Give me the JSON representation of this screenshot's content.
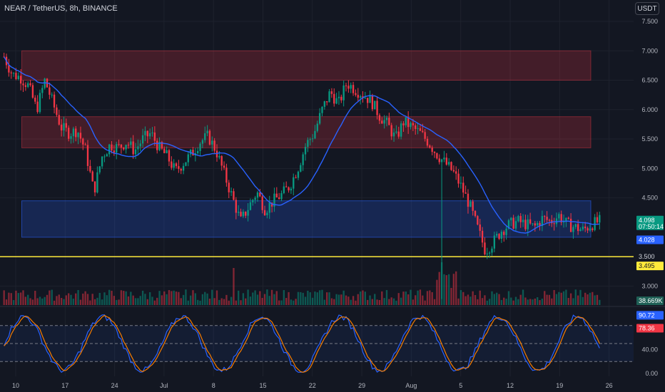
{
  "header": {
    "title": "NEAR / TetherUS, 8h, BINANCE",
    "currency_button": "USDT"
  },
  "chart_data": [
    {
      "type": "candlestick",
      "symbol": "NEAR / TetherUS",
      "interval": "8h",
      "exchange": "BINANCE",
      "ylim": [
        2.75,
        7.5
      ],
      "y_ticks": [
        "7.500",
        "7.000",
        "6.500",
        "6.000",
        "5.500",
        "5.000",
        "4.500",
        "3.000"
      ],
      "x_ticks": [
        "10",
        "17",
        "24",
        "Jul",
        "8",
        "15",
        "22",
        "29",
        "Aug",
        "5",
        "12",
        "19",
        "26"
      ],
      "x_tick_index": [
        0,
        21,
        42,
        63,
        84,
        105,
        126,
        147,
        168,
        189,
        210,
        231,
        252
      ],
      "close_path": [
        6.9,
        6.6,
        6.55,
        6.4,
        6.0,
        6.5,
        6.1,
        5.7,
        5.6,
        5.65,
        5.3,
        4.6,
        5.2,
        5.4,
        5.35,
        5.45,
        5.3,
        5.5,
        5.6,
        5.35,
        5.2,
        4.95,
        5.1,
        5.25,
        5.45,
        5.55,
        5.3,
        4.9,
        4.5,
        4.1,
        4.35,
        4.6,
        4.3,
        4.45,
        4.55,
        4.7,
        5.0,
        5.4,
        5.6,
        6.0,
        6.3,
        6.1,
        6.45,
        6.35,
        6.25,
        6.15,
        5.9,
        5.75,
        5.5,
        5.8,
        5.7,
        5.6,
        5.45,
        5.25,
        5.1,
        4.95,
        4.7,
        4.4,
        4.0,
        3.6,
        3.75,
        3.95,
        4.05,
        4.1,
        4.05,
        4.0,
        4.15,
        4.1,
        4.2,
        4.05,
        4.0,
        3.95,
        4.05,
        4.1
      ],
      "last_price": "4.098",
      "countdown": "07:50:14",
      "ma_price": "4.028",
      "moving_average_color": "#2962ff"
    },
    {
      "type": "horizontal-line",
      "value": 3.5,
      "price_label": "3.500",
      "color": "#ffeb3b"
    },
    {
      "type": "rectangle",
      "zones": [
        {
          "from": 6.5,
          "to": 7.0,
          "color": "#f23645"
        },
        {
          "from": 5.35,
          "to": 5.88,
          "color": "#f23645"
        },
        {
          "from": 3.83,
          "to": 4.45,
          "color": "#2962ff"
        }
      ],
      "extra_price_label": "3.495"
    },
    {
      "type": "bar",
      "name": "Volume",
      "last_value": "38.669K"
    },
    {
      "type": "line",
      "name": "Stochastic RSI",
      "ylim": [
        0,
        100
      ],
      "y_ticks": [
        "40.00",
        "0.00"
      ],
      "levels": [
        80,
        50,
        20
      ],
      "k_value": "90.72",
      "d_value": "78.36",
      "k_color": "#2962ff",
      "d_color": "#f57c00"
    }
  ],
  "colors": {
    "up": "#089981",
    "down": "#f23645",
    "bg": "#131722",
    "grid": "#1e222d"
  }
}
